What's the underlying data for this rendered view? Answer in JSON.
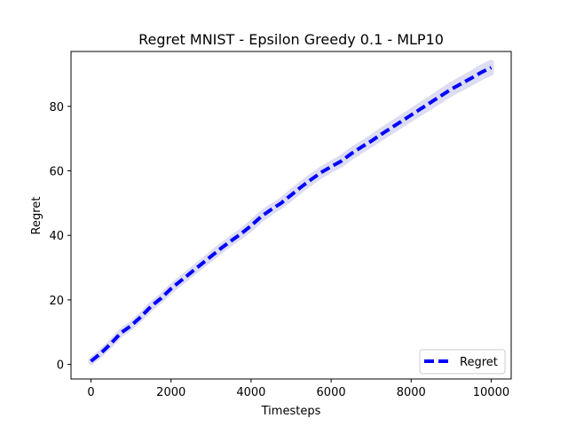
{
  "chart_data": {
    "type": "line",
    "title": "Regret MNIST - Epsilon Greedy 0.1 - MLP10",
    "xlabel": "Timesteps",
    "ylabel": "Regret",
    "xlim": [
      -500,
      10500
    ],
    "ylim": [
      -4.5,
      97
    ],
    "xticks": [
      0,
      2000,
      4000,
      6000,
      8000,
      10000
    ],
    "yticks": [
      0,
      20,
      40,
      60,
      80
    ],
    "grid": false,
    "legend_position": "lower-right",
    "series": [
      {
        "name": "Regret",
        "color": "#0000ff",
        "band_color": "#dcdcf4",
        "line_style": "dashed",
        "x": [
          0,
          250,
          500,
          750,
          1000,
          1250,
          1500,
          1750,
          2000,
          2250,
          2500,
          2750,
          3000,
          3250,
          3500,
          3750,
          4000,
          4250,
          4500,
          4750,
          5000,
          5250,
          5500,
          5750,
          6000,
          6250,
          6500,
          6750,
          7000,
          7250,
          7500,
          7750,
          8000,
          8250,
          8500,
          8750,
          9000,
          9250,
          9500,
          9750,
          10000
        ],
        "values": [
          1,
          3.5,
          6.5,
          9.8,
          12,
          14.8,
          18,
          20.5,
          23.5,
          26,
          28.5,
          31,
          33.5,
          36,
          38.3,
          40.5,
          43,
          45.8,
          48,
          50,
          52.5,
          55,
          57.3,
          59.5,
          61.3,
          63,
          65.3,
          67.3,
          69.2,
          71.3,
          73.3,
          75.3,
          77.3,
          79.3,
          81.3,
          83.3,
          85.3,
          87,
          88.7,
          90.5,
          92
        ],
        "band_halfwidth": [
          0.3,
          0.4,
          0.4,
          0.5,
          0.5,
          0.5,
          0.6,
          0.6,
          0.6,
          0.7,
          0.7,
          0.7,
          0.8,
          0.8,
          0.8,
          0.8,
          0.9,
          0.9,
          0.9,
          0.9,
          1.0,
          1.0,
          1.0,
          1.0,
          1.0,
          1.1,
          1.1,
          1.1,
          1.1,
          1.2,
          1.2,
          1.2,
          1.2,
          1.3,
          1.3,
          1.4,
          1.4,
          1.5,
          1.5,
          1.6,
          1.6
        ]
      }
    ]
  }
}
